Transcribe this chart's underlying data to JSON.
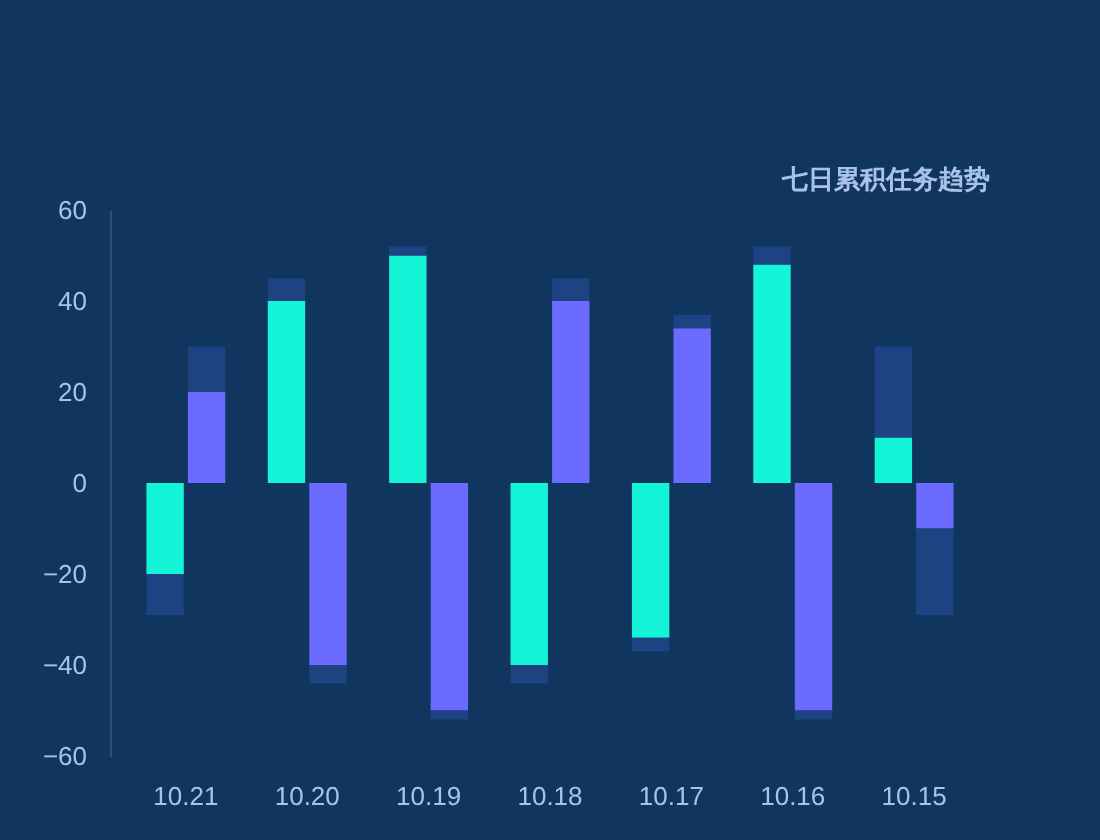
{
  "chart_data": {
    "type": "bar",
    "title": "七日累积任务趋势",
    "categories": [
      "10.21",
      "10.20",
      "10.19",
      "10.18",
      "10.17",
      "10.16",
      "10.15"
    ],
    "series": [
      {
        "color": "#14f5d8",
        "values": [
          -20,
          40,
          50,
          -40,
          -34,
          48,
          10
        ]
      },
      {
        "color": "#6b6bff",
        "values": [
          20,
          -40,
          -50,
          40,
          34,
          -50,
          -10
        ]
      },
      {
        "color": "#1e4282",
        "values": [
          -9,
          5,
          2,
          -4,
          -3,
          4,
          20
        ]
      },
      {
        "color": "#1e4282",
        "values": [
          10,
          -4,
          -2,
          5,
          3,
          -2,
          -19
        ]
      }
    ],
    "stacked": true,
    "ylim": [
      -60,
      60
    ],
    "yticks": [
      -60,
      -40,
      -20,
      0,
      20,
      40,
      60
    ],
    "grid": false,
    "legend": false
  }
}
